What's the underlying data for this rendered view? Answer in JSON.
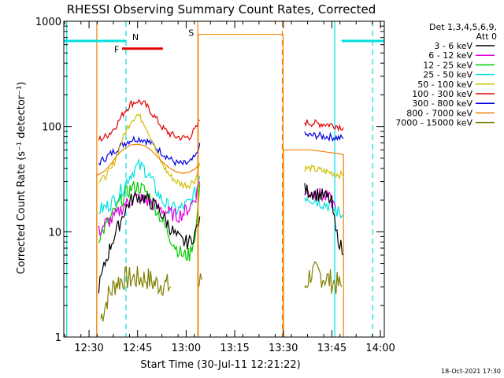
{
  "chart_data": {
    "type": "line",
    "title": "RHESSI Observing Summary Count Rates, Corrected",
    "xlabel": "Start Time (30-Jul-11 12:21:22)",
    "ylabel": "Corrected Count Rate (s⁻¹ detector⁻¹)",
    "y_scale": "log",
    "ylim": [
      1,
      1000
    ],
    "xlim_minutes": [
      12.37,
      14.02
    ],
    "x_ticks": [
      {
        "t": 12.5,
        "label": "12:30"
      },
      {
        "t": 12.75,
        "label": "12:45"
      },
      {
        "t": 13.0,
        "label": "13:00"
      },
      {
        "t": 13.25,
        "label": "13:15"
      },
      {
        "t": 13.5,
        "label": "13:30"
      },
      {
        "t": 13.75,
        "label": "13:45"
      },
      {
        "t": 14.0,
        "label": "14:00"
      }
    ],
    "y_ticks": [
      {
        "v": 1,
        "label": "1"
      },
      {
        "v": 10,
        "label": "10"
      },
      {
        "v": 100,
        "label": "100"
      },
      {
        "v": 1000,
        "label": "1000"
      }
    ],
    "legend_header": [
      "Det 1,3,4,5,6,9,",
      "Att 0"
    ],
    "timestamp": "18-Oct-2021 17:30",
    "series": [
      {
        "name": "3 - 6 keV",
        "color": "#000000",
        "segments": [
          {
            "t": [
              12.55,
              12.583,
              12.617,
              12.65,
              12.683,
              12.717,
              12.75,
              12.783,
              12.817,
              12.85,
              12.883,
              12.917,
              12.95,
              12.983,
              13.017,
              13.05,
              13.07
            ],
            "v": [
              3,
              5,
              8,
              11,
              16,
              20,
              22,
              21,
              19,
              17,
              14,
              11,
              9,
              8,
              8,
              10,
              14
            ]
          },
          {
            "t": [
              13.61,
              13.64,
              13.67,
              13.7,
              13.73,
              13.75,
              13.77,
              13.79,
              13.81
            ],
            "v": [
              25,
              24,
              23,
              22,
              21,
              19,
              10,
              8,
              6
            ]
          }
        ]
      },
      {
        "name": "6 - 12 keV",
        "color": "#e000e0",
        "segments": [
          {
            "t": [
              12.55,
              12.583,
              12.617,
              12.65,
              12.683,
              12.717,
              12.75,
              12.783,
              12.817,
              12.85,
              12.883,
              12.917,
              12.95,
              12.983,
              13.017,
              13.05,
              13.07
            ],
            "v": [
              10,
              12,
              13,
              15,
              18,
              20,
              21,
              20,
              19,
              17,
              16,
              15,
              14,
              15,
              17,
              22,
              30
            ]
          },
          {
            "t": [
              13.61,
              13.64,
              13.67,
              13.7,
              13.73,
              13.75,
              13.77
            ],
            "v": [
              24,
              24,
              23,
              22,
              21,
              19,
              17
            ]
          }
        ]
      },
      {
        "name": "12 - 25 keV",
        "color": "#00cc00",
        "segments": [
          {
            "t": [
              12.55,
              12.583,
              12.617,
              12.65,
              12.683,
              12.717,
              12.75,
              12.783,
              12.817,
              12.85,
              12.883,
              12.917,
              12.95,
              12.983,
              13.017,
              13.05,
              13.07
            ],
            "v": [
              9,
              11,
              14,
              18,
              22,
              26,
              27,
              25,
              21,
              16,
              12,
              9,
              7,
              6,
              6,
              10,
              28
            ]
          }
        ]
      },
      {
        "name": "25 - 50 keV",
        "color": "#00e0e0",
        "segments": [
          {
            "t": [
              12.55,
              12.583,
              12.617,
              12.65,
              12.683,
              12.717,
              12.75,
              12.783,
              12.817,
              12.85,
              12.883,
              12.917,
              12.95,
              12.983,
              13.017,
              13.05,
              13.07
            ],
            "v": [
              16,
              17,
              19,
              22,
              28,
              36,
              42,
              40,
              32,
              24,
              19,
              17,
              16,
              17,
              19,
              24,
              34
            ]
          },
          {
            "t": [
              13.61,
              13.64,
              13.67,
              13.7,
              13.73,
              13.75,
              13.77,
              13.79,
              13.81
            ],
            "v": [
              22,
              21,
              20,
              19,
              18,
              17,
              16,
              15,
              14
            ]
          }
        ]
      },
      {
        "name": "50 - 100 keV",
        "color": "#d0c000",
        "segments": [
          {
            "t": [
              12.55,
              12.583,
              12.617,
              12.65,
              12.683,
              12.717,
              12.75,
              12.783,
              12.817,
              12.85,
              12.883,
              12.917,
              12.95,
              12.983,
              13.017,
              13.05,
              13.07
            ],
            "v": [
              30,
              33,
              40,
              58,
              85,
              115,
              130,
              110,
              80,
              55,
              42,
              34,
              30,
              28,
              28,
              32,
              45
            ]
          },
          {
            "t": [
              13.61,
              13.64,
              13.67,
              13.7,
              13.73,
              13.76,
              13.79,
              13.81
            ],
            "v": [
              40,
              40,
              39,
              38,
              37,
              36,
              35,
              34
            ]
          }
        ]
      },
      {
        "name": "100 - 300 keV",
        "color": "#e00000",
        "segments": [
          {
            "t": [
              12.55,
              12.583,
              12.617,
              12.65,
              12.683,
              12.717,
              12.75,
              12.783,
              12.817,
              12.85,
              12.883,
              12.917,
              12.95,
              12.983,
              13.017,
              13.05,
              13.07
            ],
            "v": [
              75,
              80,
              90,
              110,
              140,
              165,
              175,
              165,
              140,
              115,
              95,
              85,
              80,
              78,
              80,
              95,
              115
            ]
          },
          {
            "t": [
              13.61,
              13.64,
              13.67,
              13.7,
              13.73,
              13.76,
              13.79,
              13.81
            ],
            "v": [
              110,
              108,
              107,
              106,
              105,
              103,
              100,
              98
            ]
          }
        ]
      },
      {
        "name": "300 - 800 keV",
        "color": "#0000e0",
        "segments": [
          {
            "t": [
              12.55,
              12.583,
              12.617,
              12.65,
              12.683,
              12.717,
              12.75,
              12.783,
              12.817,
              12.85,
              12.883,
              12.917,
              12.95,
              12.983,
              13.017,
              13.05,
              13.07
            ],
            "v": [
              45,
              50,
              56,
              63,
              70,
              75,
              77,
              75,
              70,
              62,
              55,
              49,
              45,
              44,
              45,
              52,
              70
            ]
          },
          {
            "t": [
              13.61,
              13.64,
              13.67,
              13.7,
              13.73,
              13.76,
              13.79,
              13.81
            ],
            "v": [
              83,
              82,
              82,
              81,
              80,
              79,
              78,
              77
            ]
          }
        ]
      },
      {
        "name": "800 - 7000 keV",
        "color": "#f08000",
        "segments": [
          {
            "t": [
              12.54,
              12.54,
              12.55,
              12.583,
              12.617,
              12.65,
              12.683,
              12.717,
              12.75,
              12.783,
              12.817,
              12.85,
              12.883,
              12.917,
              12.95,
              12.983,
              13.017,
              13.05,
              13.06,
              13.06,
              13.062,
              13.062,
              13.07,
              13.18,
              13.38,
              13.49,
              13.499,
              13.499,
              13.501,
              13.501,
              13.61,
              13.64,
              13.67,
              13.7,
              13.73,
              13.76,
              13.79,
              13.81,
              13.81
            ],
            "v": [
              1,
              35,
              35,
              38,
              45,
              55,
              62,
              67,
              68,
              66,
              60,
              52,
              45,
              40,
              37,
              36,
              37,
              40,
              43,
              1,
              1,
              750,
              750,
              750,
              750,
              750,
              750,
              1,
              1,
              60,
              60,
              60,
              59,
              58,
              57,
              56,
              55,
              54,
              1
            ]
          }
        ]
      },
      {
        "name": "7000 - 15000 keV",
        "color": "#808000",
        "segments": [
          {
            "t": [
              12.56,
              12.6,
              12.64,
              12.68,
              12.72,
              12.76,
              12.8,
              12.84,
              12.88,
              12.92
            ],
            "v": [
              1.5,
              2.5,
              3.3,
              3.6,
              3.6,
              3.6,
              3.6,
              3.2,
              3.2,
              3.0
            ]
          },
          {
            "t": [
              13.06,
              13.08
            ],
            "v": [
              3,
              3.5
            ]
          },
          {
            "t": [
              13.61,
              13.64,
              13.68,
              13.72,
              13.76,
              13.8
            ],
            "v": [
              3,
              4,
              4,
              3.6,
              3.3,
              3
            ]
          }
        ]
      }
    ],
    "annotations": [
      {
        "label": "N",
        "color": "#00e0e0",
        "type": "bars",
        "t_ranges": [
          [
            12.37,
            12.69
          ],
          [
            13.8,
            14.02
          ]
        ],
        "v": 650
      },
      {
        "label": "S",
        "color": "#f08000",
        "type": "marker",
        "t": 13.06,
        "v": 780
      },
      {
        "label": "F",
        "color": "#e00000",
        "type": "bars",
        "t_ranges": [
          [
            12.67,
            12.88
          ]
        ],
        "v": 550
      }
    ],
    "vlines_solid": [
      {
        "t": 12.385,
        "color": "#00e0e0"
      },
      {
        "t": 13.765,
        "color": "#00e0e0"
      },
      {
        "t": 12.54,
        "color": "#f08000"
      },
      {
        "t": 13.06,
        "color": "#f08000"
      }
    ],
    "vlines_dashed": [
      {
        "t": 12.69,
        "color": "#00e0e0"
      },
      {
        "t": 13.96,
        "color": "#00e0e0"
      },
      {
        "t": 13.495,
        "color": "#f08000"
      }
    ]
  }
}
